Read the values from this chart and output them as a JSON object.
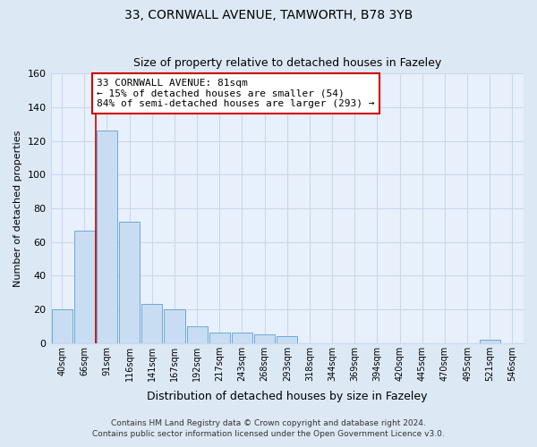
{
  "title1": "33, CORNWALL AVENUE, TAMWORTH, B78 3YB",
  "title2": "Size of property relative to detached houses in Fazeley",
  "xlabel": "Distribution of detached houses by size in Fazeley",
  "ylabel": "Number of detached properties",
  "bin_labels": [
    "40sqm",
    "66sqm",
    "91sqm",
    "116sqm",
    "141sqm",
    "167sqm",
    "192sqm",
    "217sqm",
    "243sqm",
    "268sqm",
    "293sqm",
    "318sqm",
    "344sqm",
    "369sqm",
    "394sqm",
    "420sqm",
    "445sqm",
    "470sqm",
    "495sqm",
    "521sqm",
    "546sqm"
  ],
  "bar_heights": [
    20,
    67,
    126,
    72,
    23,
    20,
    10,
    6,
    6,
    5,
    4,
    0,
    0,
    0,
    0,
    0,
    0,
    0,
    0,
    2,
    0
  ],
  "bar_color": "#c9ddf2",
  "bar_edge_color": "#6aaad4",
  "red_line_x": 1.5,
  "annotation_line1": "33 CORNWALL AVENUE: 81sqm",
  "annotation_line2": "← 15% of detached houses are smaller (54)",
  "annotation_line3": "84% of semi-detached houses are larger (293) →",
  "annotation_box_color": "#ffffff",
  "annotation_box_edge": "#cc0000",
  "ylim": [
    0,
    160
  ],
  "yticks": [
    0,
    20,
    40,
    60,
    80,
    100,
    120,
    140,
    160
  ],
  "footer1": "Contains HM Land Registry data © Crown copyright and database right 2024.",
  "footer2": "Contains public sector information licensed under the Open Government Licence v3.0.",
  "bg_color": "#dde8f5",
  "plot_bg_color": "#e8f0fb",
  "grid_color": "#c8d8ec",
  "title_fontsize": 10,
  "subtitle_fontsize": 9,
  "ylabel_fontsize": 8,
  "xlabel_fontsize": 9,
  "tick_fontsize": 7,
  "footer_fontsize": 6.5,
  "ann_fontsize": 8
}
